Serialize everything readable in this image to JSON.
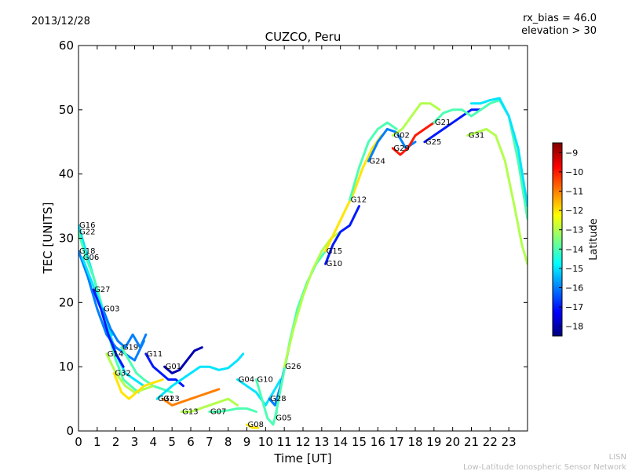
{
  "header": {
    "date": "2013/12/28",
    "info_line1": "rx_bias = 46.0",
    "info_line2": "elevation > 30"
  },
  "footer": {
    "credit_line1": "LISN",
    "credit_line2": "Low-Latitude Ionospheric Sensor Network"
  },
  "colorbar": {
    "label": "Latitude",
    "min": -18.5,
    "max": -8.5,
    "ticks": [
      -9,
      -10,
      -11,
      -12,
      -13,
      -14,
      -15,
      -16,
      -17,
      -18
    ],
    "stops": [
      "#00007f",
      "#0000ff",
      "#007fff",
      "#00ffff",
      "#7fff7f",
      "#ffff00",
      "#ff7f00",
      "#ff0000",
      "#7f0000"
    ]
  },
  "chart_data": {
    "type": "line",
    "title": "CUZCO, Peru",
    "xlabel": "Time [UT]",
    "ylabel": "TEC [UNITS]",
    "xlim": [
      0,
      24
    ],
    "ylim": [
      0,
      60
    ],
    "xticks": [
      0,
      1,
      2,
      3,
      4,
      5,
      6,
      7,
      8,
      9,
      10,
      11,
      12,
      13,
      14,
      15,
      16,
      17,
      18,
      19,
      20,
      21,
      22,
      23
    ],
    "yticks": [
      0,
      10,
      20,
      30,
      40,
      50,
      60
    ],
    "grid": false,
    "series": [
      {
        "name": "G16",
        "lat": -15,
        "points": [
          [
            0,
            32
          ],
          [
            0.5,
            27
          ],
          [
            1,
            22
          ],
          [
            1.5,
            17
          ],
          [
            2,
            12
          ],
          [
            2.5,
            9
          ],
          [
            3,
            8
          ],
          [
            3.5,
            7
          ]
        ]
      },
      {
        "name": "G22",
        "lat": -14,
        "points": [
          [
            0,
            31
          ],
          [
            0.4,
            27
          ],
          [
            0.8,
            24
          ],
          [
            1.2,
            20
          ],
          [
            1.6,
            15
          ],
          [
            2,
            11
          ],
          [
            2.4,
            8
          ],
          [
            2.8,
            7
          ],
          [
            3.2,
            6
          ]
        ]
      },
      {
        "name": "G18",
        "lat": -16,
        "points": [
          [
            0,
            28
          ],
          [
            0.5,
            24
          ],
          [
            1,
            19
          ],
          [
            1.5,
            15
          ],
          [
            2,
            13
          ],
          [
            2.5,
            12
          ],
          [
            3,
            11
          ],
          [
            3.5,
            14
          ]
        ]
      },
      {
        "name": "G06",
        "lat": -15,
        "points": [
          [
            0.2,
            27
          ],
          [
            0.6,
            24
          ],
          [
            1,
            21
          ],
          [
            1.4,
            18
          ],
          [
            1.8,
            15
          ]
        ]
      },
      {
        "name": "G27",
        "lat": -17,
        "points": [
          [
            0.8,
            22
          ],
          [
            1.2,
            19
          ],
          [
            1.6,
            15
          ],
          [
            2,
            12
          ],
          [
            2.4,
            10
          ]
        ]
      },
      {
        "name": "G03",
        "lat": -16,
        "points": [
          [
            1.3,
            19
          ],
          [
            1.7,
            16
          ],
          [
            2.1,
            14
          ],
          [
            2.5,
            13
          ],
          [
            2.9,
            15
          ],
          [
            3.3,
            13
          ],
          [
            3.6,
            15
          ]
        ]
      },
      {
        "name": "G19",
        "lat": -14,
        "points": [
          [
            2.3,
            13
          ],
          [
            2.7,
            11
          ],
          [
            3.1,
            9
          ],
          [
            3.5,
            8
          ],
          [
            4,
            7
          ],
          [
            4.5,
            6.5
          ],
          [
            5,
            6
          ]
        ]
      },
      {
        "name": "G14",
        "lat": -13,
        "points": [
          [
            1.5,
            12
          ],
          [
            2,
            9
          ],
          [
            2.5,
            7
          ],
          [
            3,
            6
          ],
          [
            3.5,
            6.5
          ],
          [
            4,
            7
          ]
        ]
      },
      {
        "name": "G11",
        "lat": -17,
        "points": [
          [
            3.6,
            12
          ],
          [
            4,
            10
          ],
          [
            4.4,
            9
          ],
          [
            4.8,
            8
          ],
          [
            5.2,
            8
          ],
          [
            5.6,
            7
          ]
        ]
      },
      {
        "name": "G32",
        "lat": -12,
        "points": [
          [
            1.9,
            9
          ],
          [
            2.3,
            6
          ],
          [
            2.7,
            5
          ],
          [
            3.1,
            6
          ],
          [
            3.5,
            7
          ],
          [
            4,
            7.5
          ],
          [
            4.5,
            8
          ]
        ]
      },
      {
        "name": "G01",
        "lat": -18,
        "points": [
          [
            4.6,
            10
          ],
          [
            5,
            9
          ],
          [
            5.4,
            9.5
          ],
          [
            5.8,
            11
          ],
          [
            6.2,
            12.5
          ],
          [
            6.6,
            13
          ]
        ]
      },
      {
        "name": "G31",
        "lat": -15,
        "points": [
          [
            4.2,
            5
          ],
          [
            4.6,
            6
          ],
          [
            5,
            7
          ],
          [
            5.5,
            8
          ],
          [
            6,
            9
          ],
          [
            6.5,
            10
          ],
          [
            7,
            10
          ],
          [
            7.5,
            9.5
          ],
          [
            8,
            9.8
          ],
          [
            8.5,
            11
          ],
          [
            8.8,
            12
          ]
        ]
      },
      {
        "name": "G23",
        "lat": -11,
        "points": [
          [
            4.5,
            5
          ],
          [
            5,
            4
          ],
          [
            5.5,
            4.5
          ],
          [
            6,
            5
          ],
          [
            6.5,
            5.5
          ],
          [
            7,
            6
          ],
          [
            7.5,
            6.5
          ]
        ]
      },
      {
        "name": "G13",
        "lat": -13,
        "points": [
          [
            5.5,
            3
          ],
          [
            6,
            3
          ],
          [
            6.5,
            3.5
          ],
          [
            7,
            4
          ],
          [
            7.5,
            4.5
          ],
          [
            8,
            5
          ],
          [
            8.5,
            4
          ]
        ]
      },
      {
        "name": "G07",
        "lat": -14,
        "points": [
          [
            7,
            3
          ],
          [
            7.5,
            3
          ],
          [
            8,
            3.2
          ],
          [
            8.5,
            3.5
          ],
          [
            9,
            3.5
          ],
          [
            9.5,
            3
          ]
        ]
      },
      {
        "name": "G04",
        "lat": -15,
        "points": [
          [
            8.5,
            8
          ],
          [
            9,
            7
          ],
          [
            9.5,
            6
          ],
          [
            10,
            4
          ],
          [
            10.4,
            6
          ],
          [
            10.8,
            8
          ]
        ]
      },
      {
        "name": "G08",
        "lat": -12,
        "points": [
          [
            9,
            1
          ],
          [
            9.3,
            0.5
          ],
          [
            9.6,
            0.5
          ]
        ]
      },
      {
        "name": "G10",
        "lat": -14,
        "points": [
          [
            9.5,
            8
          ],
          [
            9.8,
            5
          ],
          [
            10.1,
            2
          ],
          [
            10.4,
            1
          ],
          [
            10.6,
            3
          ]
        ]
      },
      {
        "name": "G28",
        "lat": -16,
        "points": [
          [
            10.2,
            5
          ],
          [
            10.5,
            4
          ],
          [
            10.8,
            7
          ],
          [
            11.1,
            11
          ],
          [
            11.4,
            15
          ]
        ]
      },
      {
        "name": "G05",
        "lat": -14,
        "points": [
          [
            10.5,
            2
          ],
          [
            10.9,
            8
          ],
          [
            11.3,
            14
          ],
          [
            11.7,
            19
          ],
          [
            12.2,
            23
          ],
          [
            12.7,
            26
          ],
          [
            13.2,
            28
          ]
        ]
      },
      {
        "name": "G26",
        "lat": -13,
        "points": [
          [
            11,
            10
          ],
          [
            11.5,
            16
          ],
          [
            12,
            21
          ],
          [
            12.5,
            25
          ],
          [
            13,
            28
          ],
          [
            13.5,
            30
          ],
          [
            14,
            31
          ]
        ]
      },
      {
        "name": "G10",
        "lat": -17,
        "points": [
          [
            13.2,
            26
          ],
          [
            13.6,
            29
          ],
          [
            14,
            31
          ],
          [
            14.5,
            32
          ],
          [
            15,
            35
          ]
        ]
      },
      {
        "name": "G15",
        "lat": -12,
        "points": [
          [
            13.2,
            28
          ],
          [
            13.7,
            31
          ],
          [
            14.2,
            34
          ],
          [
            14.7,
            37
          ],
          [
            15.2,
            41
          ],
          [
            15.7,
            44
          ],
          [
            16.2,
            46
          ]
        ]
      },
      {
        "name": "G12",
        "lat": -14,
        "points": [
          [
            14.5,
            36
          ],
          [
            15,
            41
          ],
          [
            15.5,
            45
          ],
          [
            16,
            47
          ],
          [
            16.5,
            48
          ],
          [
            17,
            47
          ]
        ]
      },
      {
        "name": "G24",
        "lat": -16,
        "points": [
          [
            15.5,
            42
          ],
          [
            16,
            45
          ],
          [
            16.5,
            47
          ],
          [
            17,
            46.5
          ],
          [
            17.5,
            44
          ],
          [
            18,
            45
          ]
        ]
      },
      {
        "name": "G02",
        "lat": -13,
        "points": [
          [
            16.8,
            46
          ],
          [
            17.3,
            47
          ],
          [
            17.8,
            49
          ],
          [
            18.3,
            51
          ],
          [
            18.8,
            51
          ],
          [
            19.3,
            50
          ]
        ]
      },
      {
        "name": "G29",
        "lat": -10,
        "points": [
          [
            16.8,
            44
          ],
          [
            17.2,
            43
          ],
          [
            17.6,
            44
          ],
          [
            18,
            46
          ],
          [
            18.5,
            47
          ],
          [
            19,
            48
          ]
        ]
      },
      {
        "name": "G25",
        "lat": -17,
        "points": [
          [
            18.5,
            45
          ],
          [
            19,
            46
          ],
          [
            19.5,
            47
          ],
          [
            20,
            48
          ],
          [
            20.5,
            49
          ],
          [
            21,
            50
          ],
          [
            21.5,
            50
          ]
        ]
      },
      {
        "name": "G21",
        "lat": -14,
        "points": [
          [
            19,
            48
          ],
          [
            19.5,
            49.5
          ],
          [
            20,
            50
          ],
          [
            20.5,
            50
          ],
          [
            21,
            49
          ],
          [
            21.5,
            50
          ],
          [
            22,
            51
          ],
          [
            22.5,
            51.5
          ],
          [
            23,
            49
          ],
          [
            23.5,
            42
          ],
          [
            24,
            33
          ]
        ]
      },
      {
        "name": "G31",
        "lat": -13,
        "points": [
          [
            20.8,
            46
          ],
          [
            21.3,
            46.5
          ],
          [
            21.8,
            47
          ],
          [
            22.3,
            46
          ],
          [
            22.8,
            42
          ],
          [
            23.3,
            35
          ],
          [
            23.7,
            29
          ],
          [
            24,
            26
          ]
        ]
      },
      {
        "name": "",
        "lat": -15,
        "points": [
          [
            21,
            51
          ],
          [
            21.5,
            51
          ],
          [
            22,
            51.5
          ],
          [
            22.5,
            51.8
          ],
          [
            23,
            49
          ],
          [
            23.5,
            44
          ],
          [
            24,
            35
          ]
        ]
      }
    ]
  }
}
